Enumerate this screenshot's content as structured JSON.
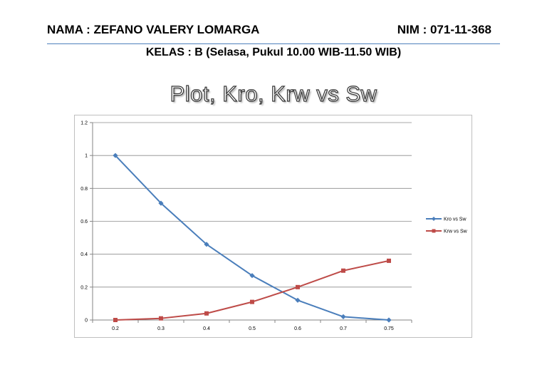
{
  "header": {
    "nama": "NAMA : ZEFANO VALERY LOMARGA",
    "nim": "NIM : 071-11-368",
    "kelas": "KELAS : B (Selasa, Pukul 10.00 WIB-11.50 WIB)"
  },
  "chart_data": {
    "type": "line",
    "title": "Plot, Kro, Krw vs Sw",
    "categories": [
      "0.2",
      "0.3",
      "0.4",
      "0.5",
      "0.6",
      "0.7",
      "0.75"
    ],
    "y_ticks": [
      "0",
      "0.2",
      "0.4",
      "0.6",
      "0.8",
      "1",
      "1.2"
    ],
    "ylim": [
      0,
      1.2
    ],
    "grid": true,
    "legend_position": "right",
    "series": [
      {
        "name": "Kro vs Sw",
        "color": "#4a7ebb",
        "marker": "diamond",
        "values": [
          1.0,
          0.71,
          0.46,
          0.27,
          0.12,
          0.02,
          0.0
        ]
      },
      {
        "name": "Krw vs Sw",
        "color": "#be4b48",
        "marker": "square",
        "values": [
          0.0,
          0.01,
          0.04,
          0.11,
          0.2,
          0.3,
          0.36
        ]
      }
    ]
  }
}
